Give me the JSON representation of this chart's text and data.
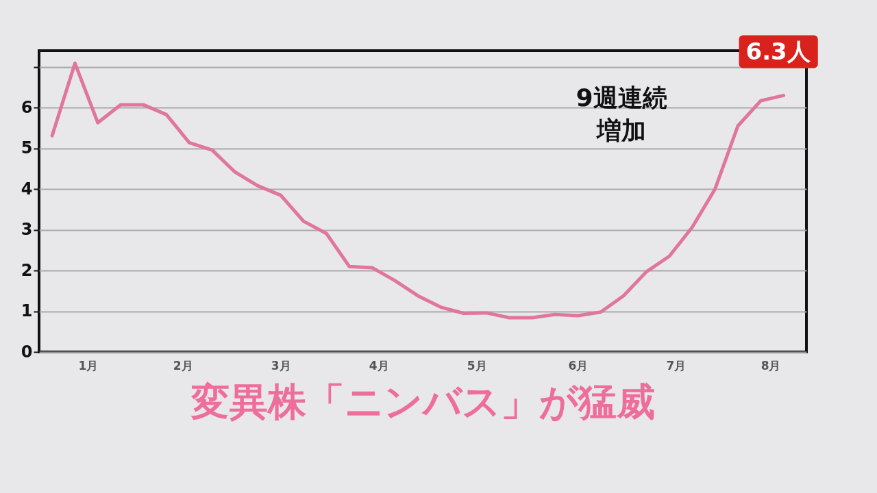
{
  "chart_data": {
    "type": "line",
    "title": "変異株「ニンバス」が猛威",
    "x": [
      "--01-05",
      "--01-12",
      "--01-19",
      "--01-26",
      "--02-02",
      "--02-09",
      "--02-16",
      "--02-23",
      "--03-02",
      "--03-09",
      "--03-16",
      "--03-23",
      "--03-30",
      "--04-06",
      "--04-13",
      "--04-20",
      "--04-27",
      "--05-04",
      "--05-11",
      "--05-18",
      "--05-25",
      "--06-01",
      "--06-08",
      "--06-15",
      "--06-22",
      "--06-29",
      "--07-06",
      "--07-13",
      "--07-20",
      "--07-27",
      "--08-03",
      "--08-10",
      "--08-17"
    ],
    "series": [
      {
        "color": "#e0769c",
        "values": [
          5.31,
          7.09,
          5.63,
          6.07,
          6.07,
          5.83,
          5.14,
          4.96,
          4.42,
          4.08,
          3.85,
          3.21,
          2.91,
          2.1,
          2.07,
          1.75,
          1.38,
          1.1,
          0.95,
          0.96,
          0.84,
          0.84,
          0.92,
          0.89,
          0.98,
          1.38,
          1.97,
          2.35,
          3.06,
          4.0,
          5.55,
          6.17,
          6.3
        ]
      }
    ],
    "xlim": [
      "--01-01",
      "--08-24"
    ],
    "xticks": [
      {
        "value": "--01-16",
        "label": "1月"
      },
      {
        "value": "--02-14",
        "label": "2月"
      },
      {
        "value": "--03-16",
        "label": "3月"
      },
      {
        "value": "--04-15",
        "label": "4月"
      },
      {
        "value": "--05-15",
        "label": "5月"
      },
      {
        "value": "--06-15",
        "label": "6月"
      },
      {
        "value": "--07-15",
        "label": "7月"
      },
      {
        "value": "--08-13",
        "label": "8月"
      }
    ],
    "ylim": [
      0,
      7.4
    ],
    "yticks": [
      0,
      1,
      2,
      3,
      4,
      5,
      6,
      {
        "value": 7,
        "label": null
      }
    ],
    "grid": "y",
    "annotations": [
      {
        "text": "6.3人",
        "x": "--08-17",
        "y": 6.3
      },
      "9週連続増加"
    ]
  }
}
